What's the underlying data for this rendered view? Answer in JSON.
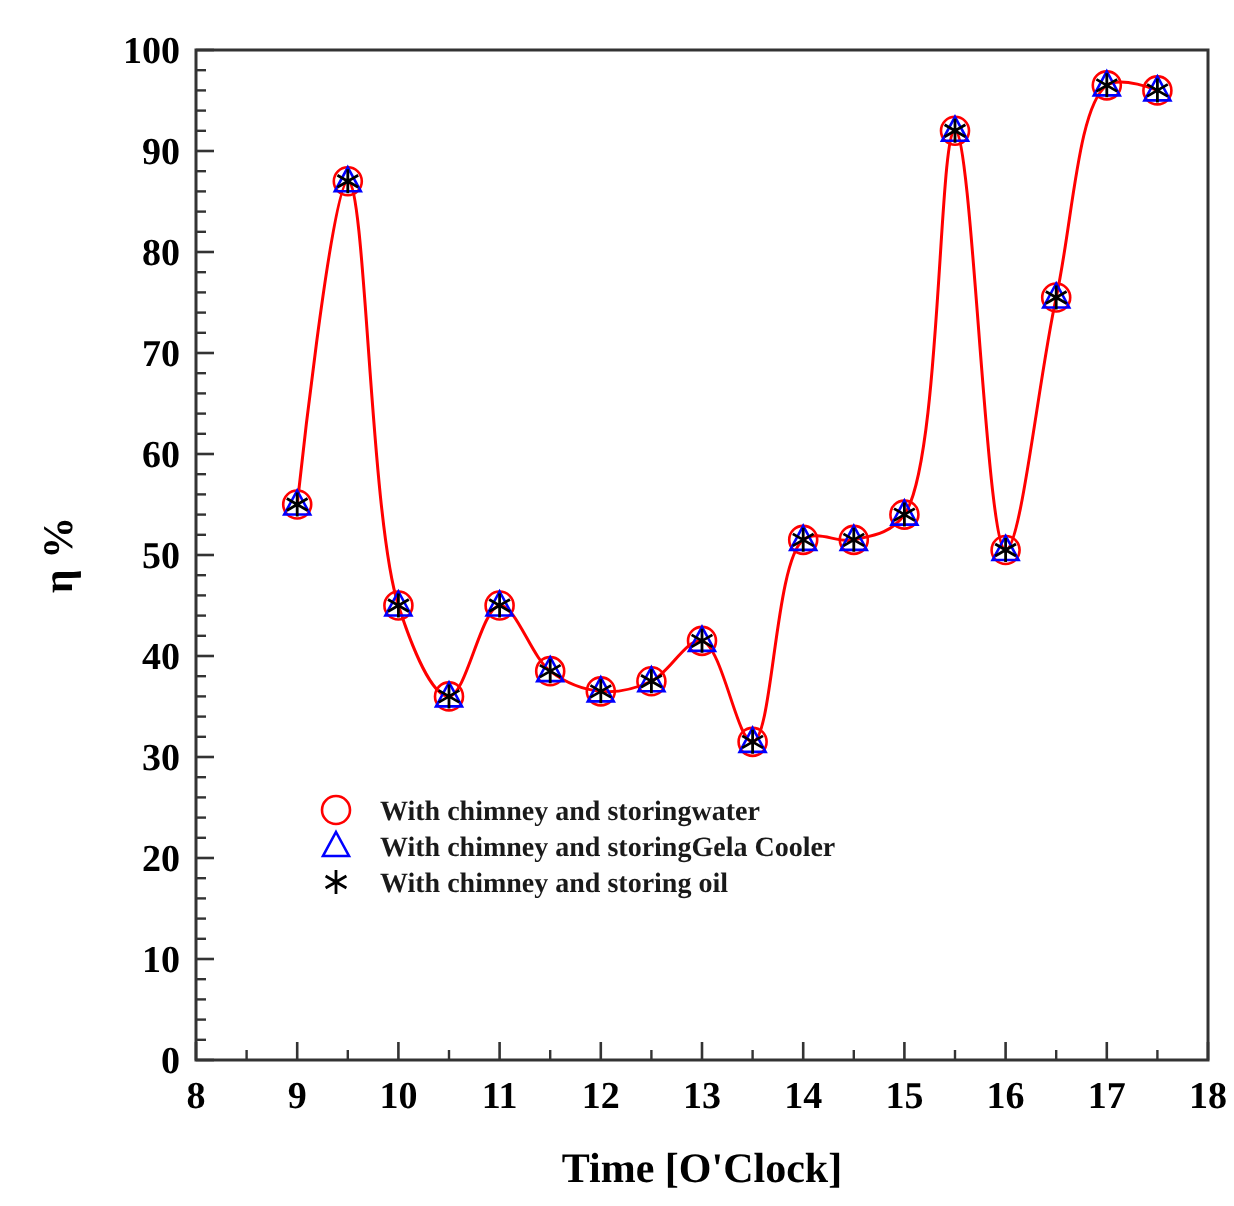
{
  "chart_data": {
    "type": "line",
    "xlabel": "Time [O'Clock]",
    "ylabel": "η %",
    "x": [
      9,
      9.5,
      10,
      10.5,
      11,
      11.5,
      12,
      12.5,
      13,
      13.5,
      14,
      14.5,
      15,
      15.5,
      16,
      16.5,
      17,
      17.5
    ],
    "series": [
      {
        "name": "With chimney and storingwater",
        "marker": "circle",
        "color": "#ff0000",
        "values": [
          55,
          87,
          45,
          36,
          45,
          38.5,
          36.5,
          37.5,
          41.5,
          31.5,
          51.5,
          51.5,
          54,
          92,
          50.5,
          75.5,
          96.5,
          96
        ]
      },
      {
        "name": "With chimney and storingGela Cooler",
        "type": "scatter",
        "marker": "triangle",
        "color": "#0000ff",
        "values": [
          55,
          87,
          45,
          36,
          45,
          38.5,
          36.5,
          37.5,
          41.5,
          31.5,
          51.5,
          51.5,
          54,
          92,
          50.5,
          75.5,
          96.5,
          96
        ]
      },
      {
        "name": "With chimney and storing oil",
        "type": "scatter",
        "marker": "cross",
        "color": "#000000",
        "values": [
          55,
          87,
          45,
          36,
          45,
          38.5,
          36.5,
          37.5,
          41.5,
          31.5,
          51.5,
          51.5,
          54,
          92,
          50.5,
          75.5,
          96.5,
          96
        ]
      }
    ],
    "xlim": [
      8,
      18
    ],
    "xticks": [
      8,
      9,
      10,
      11,
      12,
      13,
      14,
      15,
      16,
      17,
      18
    ],
    "ylim": [
      0,
      100
    ],
    "yticks": [
      0,
      10,
      20,
      30,
      40,
      50,
      60,
      70,
      80,
      90,
      100
    ],
    "legend": "bottom left",
    "grid": false
  }
}
